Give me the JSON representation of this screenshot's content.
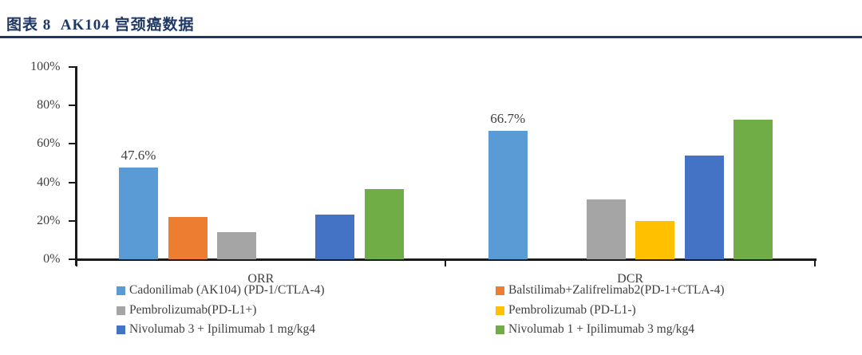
{
  "header": {
    "title": "图表 8  AK104 宫颈癌数据",
    "title_color": "#1F3864"
  },
  "chart_data": {
    "type": "bar",
    "title": "AK104 宫颈癌数据",
    "categories": [
      "ORR",
      "DCR"
    ],
    "series": [
      {
        "name": "Cadonilimab (AK104) (PD-1/CTLA-4)",
        "color": "#5B9BD5",
        "values": [
          47.6,
          66.7
        ],
        "data_labels": [
          "47.6%",
          "66.7%"
        ]
      },
      {
        "name": "Balstilimab+Zalifrelimab2(PD-1+CTLA-4)",
        "color": "#ED7D31",
        "values": [
          22,
          null
        ],
        "data_labels": [
          null,
          null
        ]
      },
      {
        "name": "Pembrolizumab(PD-L1+)",
        "color": "#A5A5A5",
        "values": [
          14,
          31
        ],
        "data_labels": [
          null,
          null
        ]
      },
      {
        "name": "Pembrolizumab (PD-L1-)",
        "color": "#FFC000",
        "values": [
          null,
          20
        ],
        "data_labels": [
          null,
          null
        ]
      },
      {
        "name": "Nivolumab 3 + Ipilimumab 1 mg/kg4",
        "color": "#4472C4",
        "values": [
          23.1,
          53.8
        ],
        "data_labels": [
          null,
          null
        ]
      },
      {
        "name": "Nivolumab 1 + Ipilimumab 3 mg/kg4",
        "color": "#70AD47",
        "values": [
          36.4,
          72.7
        ],
        "data_labels": [
          null,
          null
        ]
      }
    ],
    "xlabel": "",
    "ylabel": "",
    "ylim": [
      0,
      100
    ],
    "y_ticks": [
      "0%",
      "20%",
      "40%",
      "60%",
      "80%",
      "100%"
    ],
    "grid": false,
    "legend_position": "bottom",
    "legend_columns": 2
  }
}
